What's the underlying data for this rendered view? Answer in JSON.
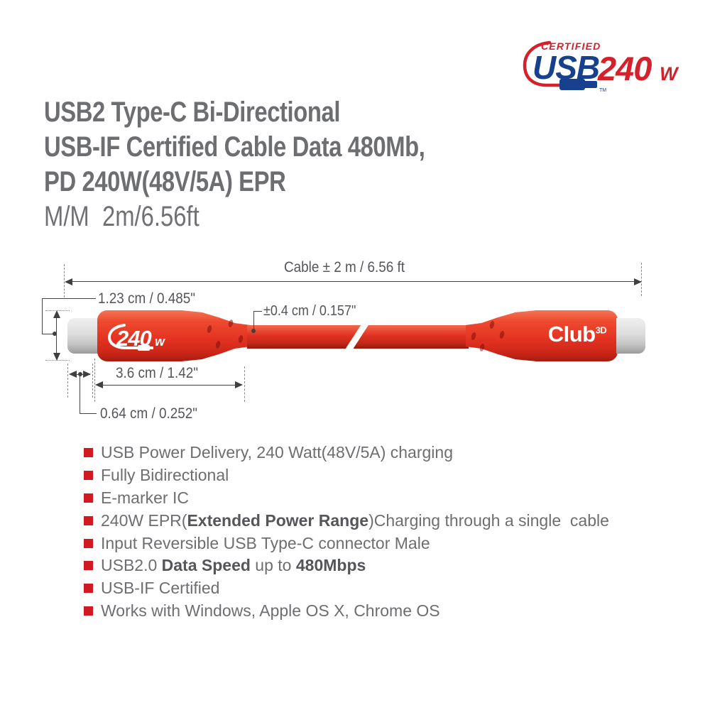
{
  "badge": {
    "certified": "CERTIFIED",
    "usb": "USB",
    "watt": "240",
    "watt_unit": "W",
    "tm": "TM"
  },
  "title": {
    "lines": [
      "USB2 Type-C Bi-Directional",
      "USB-IF Certified Cable Data 480Mb,",
      "PD 240W(48V/5A) EPR"
    ],
    "subtitle": "M/M  2m/6.56ft"
  },
  "diagram": {
    "cable_length": "Cable ± 2 m / 6.56 ft",
    "connector_height": "1.23 cm / 0.485\"",
    "cable_diameter": "±0.4 cm / 0.157\"",
    "connector_length": "3.6 cm / 1.42\"",
    "tip_length": "0.64 cm / 0.252\"",
    "left_connector_label": "240",
    "left_connector_label_unit": "w",
    "right_connector_brand": "Club",
    "right_connector_brand_sup": "3D"
  },
  "features": [
    [
      {
        "t": "USB Power Delivery, 240 Watt(48V/5A) charging",
        "b": false
      }
    ],
    [
      {
        "t": "Fully Bidirectional",
        "b": false
      }
    ],
    [
      {
        "t": "E-marker IC",
        "b": false
      }
    ],
    [
      {
        "t": "240W EPR(",
        "b": false
      },
      {
        "t": "Extended Power Range",
        "b": true
      },
      {
        "t": ")Charging through a single  cable",
        "b": false
      }
    ],
    [
      {
        "t": "Input Reversible USB Type-C connector Male",
        "b": false
      }
    ],
    [
      {
        "t": "USB2.0 ",
        "b": false
      },
      {
        "t": "Data Speed",
        "b": true
      },
      {
        "t": " up to ",
        "b": false
      },
      {
        "t": "480Mbps",
        "b": true
      }
    ],
    [
      {
        "t": "USB-IF Certified",
        "b": false
      }
    ],
    [
      {
        "t": "Works with Windows, Apple OS X, Chrome OS",
        "b": false
      }
    ]
  ],
  "colors": {
    "badge_red": "#d5212b",
    "badge_navy": "#17418f",
    "cable_red": "#e43322",
    "text_gray": "#6d6e71",
    "bullet_red": "#d01920"
  }
}
